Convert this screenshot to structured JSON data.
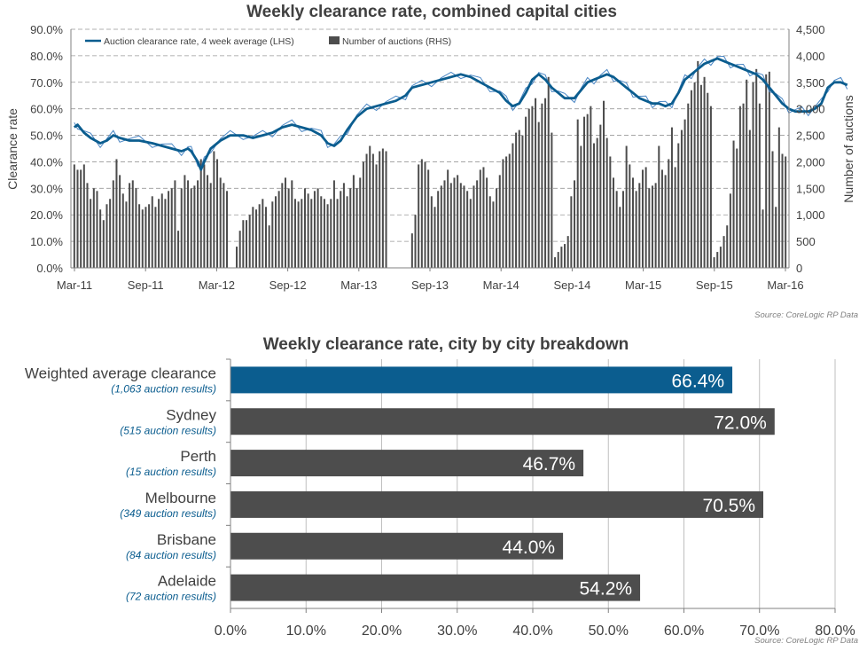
{
  "colors": {
    "primary_blue": "#0b5d8f",
    "bar_gray": "#4d4d4d",
    "text_gray": "#404040",
    "sublabel_blue": "#0b5d8f",
    "source_gray": "#808080"
  },
  "chart_data": [
    {
      "type": "bar+line",
      "title": "Weekly clearance rate, combined capital cities",
      "ylabel_left": "Clearance rate",
      "ylabel_right": "Number of auctions",
      "x_ticks": [
        "Mar-11",
        "Sep-11",
        "Mar-12",
        "Sep-12",
        "Mar-13",
        "Sep-13",
        "Mar-14",
        "Sep-14",
        "Mar-15",
        "Sep-15",
        "Mar-16"
      ],
      "y_left_ticks": [
        "0.0%",
        "10.0%",
        "20.0%",
        "30.0%",
        "40.0%",
        "50.0%",
        "60.0%",
        "70.0%",
        "80.0%",
        "90.0%"
      ],
      "y_right_ticks": [
        "0",
        "500",
        "1,000",
        "1,500",
        "2,000",
        "2,500",
        "3,000",
        "3,500",
        "4,000",
        "4,500"
      ],
      "ylim_left": [
        0,
        90
      ],
      "ylim_right": [
        0,
        4500
      ],
      "legend_position": "top-left",
      "grid": "horizontal dashed",
      "source": "Source: CoreLogic  RP Data",
      "series": [
        {
          "name": "Auction clearance rate, 4 week average (LHS)",
          "kind": "line",
          "axis": "left",
          "points": [
            [
              0,
              53
            ],
            [
              1,
              54
            ],
            [
              3,
              51
            ],
            [
              5,
              49
            ],
            [
              8,
              47
            ],
            [
              10,
              48
            ],
            [
              12,
              50
            ],
            [
              14,
              49
            ],
            [
              17,
              48
            ],
            [
              20,
              48
            ],
            [
              24,
              47
            ],
            [
              27,
              46
            ],
            [
              30,
              45
            ],
            [
              33,
              44
            ],
            [
              35,
              45
            ],
            [
              36,
              44
            ],
            [
              38,
              40
            ],
            [
              39,
              37
            ],
            [
              40,
              40
            ],
            [
              42,
              45
            ],
            [
              45,
              48
            ],
            [
              48,
              50
            ],
            [
              52,
              50
            ],
            [
              55,
              49
            ],
            [
              58,
              50
            ],
            [
              61,
              51
            ],
            [
              64,
              53
            ],
            [
              67,
              54
            ],
            [
              70,
              53
            ],
            [
              73,
              52
            ],
            [
              76,
              50
            ],
            [
              78,
              47
            ],
            [
              80,
              46
            ],
            [
              82,
              48
            ],
            [
              84,
              52
            ],
            [
              87,
              57
            ],
            [
              90,
              60
            ],
            [
              93,
              61
            ],
            [
              96,
              62
            ],
            [
              99,
              63
            ],
            [
              102,
              65
            ],
            [
              104,
              68
            ],
            [
              107,
              69
            ],
            [
              110,
              70
            ],
            [
              113,
              71
            ],
            [
              116,
              72
            ],
            [
              119,
              73
            ],
            [
              122,
              72
            ],
            [
              125,
              70
            ],
            [
              128,
              68
            ],
            [
              131,
              66
            ],
            [
              133,
              63
            ],
            [
              135,
              61
            ],
            [
              137,
              62
            ],
            [
              139,
              66
            ],
            [
              141,
              71
            ],
            [
              143,
              73
            ],
            [
              145,
              71
            ],
            [
              147,
              68
            ],
            [
              149,
              66
            ],
            [
              151,
              64
            ],
            [
              154,
              64
            ],
            [
              156,
              67
            ],
            [
              158,
              70
            ],
            [
              160,
              71
            ],
            [
              162,
              72
            ],
            [
              164,
              73
            ],
            [
              166,
              72
            ],
            [
              168,
              70
            ],
            [
              170,
              68
            ],
            [
              172,
              66
            ],
            [
              174,
              64
            ],
            [
              176,
              63
            ],
            [
              178,
              62
            ],
            [
              180,
              62
            ],
            [
              182,
              61
            ],
            [
              184,
              62
            ],
            [
              186,
              66
            ],
            [
              188,
              71
            ],
            [
              190,
              73
            ],
            [
              192,
              75
            ],
            [
              194,
              77
            ],
            [
              196,
              78
            ],
            [
              198,
              79
            ],
            [
              200,
              78
            ],
            [
              202,
              77
            ],
            [
              204,
              76
            ],
            [
              206,
              75
            ],
            [
              208,
              74
            ],
            [
              210,
              73
            ],
            [
              212,
              71
            ],
            [
              214,
              68
            ],
            [
              216,
              65
            ],
            [
              218,
              62
            ],
            [
              220,
              60
            ],
            [
              222,
              59
            ],
            [
              224,
              59
            ],
            [
              226,
              59
            ],
            [
              228,
              60
            ],
            [
              230,
              62
            ],
            [
              232,
              68
            ],
            [
              234,
              70
            ],
            [
              236,
              70
            ],
            [
              238,
              69
            ]
          ]
        },
        {
          "name": "Number of auctions (RHS)",
          "kind": "bar",
          "axis": "right",
          "values": [
            1950,
            1850,
            1850,
            1950,
            1600,
            1300,
            1500,
            1450,
            1100,
            900,
            1200,
            1300,
            1650,
            2050,
            1750,
            1400,
            1250,
            1600,
            1650,
            1500,
            1200,
            1100,
            1150,
            1200,
            1350,
            1150,
            1300,
            1400,
            1300,
            1450,
            1500,
            1650,
            700,
            1500,
            1750,
            1650,
            1500,
            1550,
            1650,
            2050,
            1950,
            1750,
            1600,
            2200,
            2050,
            1700,
            1600,
            1450,
            0,
            0,
            400,
            700,
            900,
            900,
            1000,
            1150,
            1100,
            1200,
            1300,
            1150,
            800,
            1250,
            1350,
            1450,
            1600,
            1700,
            1500,
            1650,
            1300,
            1250,
            1300,
            1500,
            1400,
            1300,
            1450,
            1500,
            1350,
            1300,
            1200,
            1300,
            1650,
            1300,
            1450,
            1600,
            1350,
            1500,
            1750,
            1500,
            1700,
            2000,
            2150,
            2300,
            2150,
            1950,
            2200,
            2250,
            2200,
            0,
            0,
            0,
            0,
            0,
            0,
            0,
            650,
            1000,
            1950,
            2050,
            2000,
            1850,
            1350,
            1150,
            1450,
            1550,
            1650,
            1850,
            1600,
            1700,
            1750,
            1600,
            1550,
            1450,
            1300,
            1550,
            1650,
            1850,
            1900,
            1700,
            1350,
            1250,
            1500,
            1750,
            2050,
            2100,
            2150,
            2350,
            2550,
            2600,
            2500,
            2850,
            3000,
            3050,
            3200,
            2750,
            3100,
            3200,
            3600,
            2550,
            200,
            300,
            400,
            450,
            600,
            1350,
            1650,
            2800,
            2300,
            2850,
            2900,
            3050,
            2350,
            2450,
            2700,
            3150,
            2450,
            2100,
            1700,
            1450,
            1150,
            1450,
            2300,
            1950,
            1700,
            1450,
            1600,
            1850,
            1900,
            1500,
            1550,
            1600,
            2300,
            1850,
            1750,
            2050,
            2650,
            1900,
            2350,
            2600,
            2800,
            3100,
            3350,
            3500,
            3900,
            3450,
            3600,
            3300,
            3050,
            200,
            300,
            400,
            600,
            800,
            1400,
            2400,
            2250,
            3050,
            3100,
            3550,
            2600,
            3500,
            3750,
            3100,
            1100,
            3650,
            3700,
            2200,
            1150,
            2650,
            2150,
            2100
          ]
        }
      ]
    },
    {
      "type": "bar",
      "orientation": "horizontal",
      "title": "Weekly clearance rate, city by city breakdown",
      "x_ticks": [
        "0.0%",
        "10.0%",
        "20.0%",
        "30.0%",
        "40.0%",
        "50.0%",
        "60.0%",
        "70.0%",
        "80.0%"
      ],
      "xlim": [
        0,
        80
      ],
      "source": "Source: CoreLogic  RP Data",
      "categories": [
        {
          "label": "Weighted average clearance",
          "sublabel": "(1,063 auction results)",
          "value": 66.4,
          "value_label": "66.4%",
          "highlight": true
        },
        {
          "label": "Sydney",
          "sublabel": "(515 auction results)",
          "value": 72.0,
          "value_label": "72.0%",
          "highlight": false
        },
        {
          "label": "Perth",
          "sublabel": "(15 auction results)",
          "value": 46.7,
          "value_label": "46.7%",
          "highlight": false
        },
        {
          "label": "Melbourne",
          "sublabel": "(349 auction results)",
          "value": 70.5,
          "value_label": "70.5%",
          "highlight": false
        },
        {
          "label": "Brisbane",
          "sublabel": "(84 auction results)",
          "value": 44.0,
          "value_label": "44.0%",
          "highlight": false
        },
        {
          "label": "Adelaide",
          "sublabel": "(72 auction results)",
          "value": 54.2,
          "value_label": "54.2%",
          "highlight": false
        }
      ]
    }
  ]
}
